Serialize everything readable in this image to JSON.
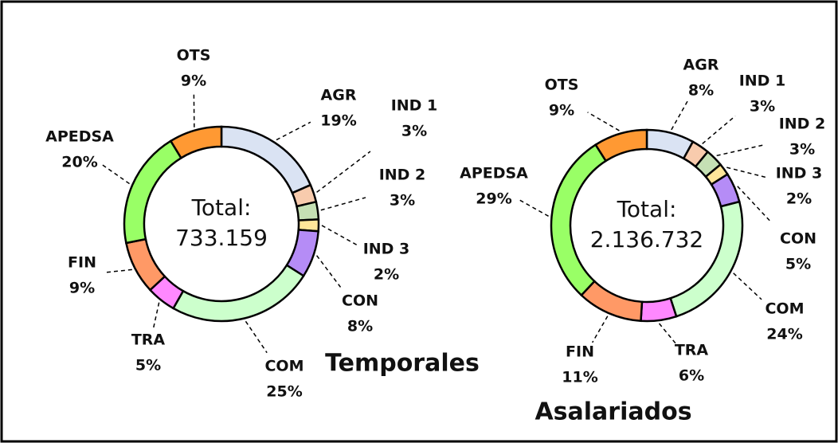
{
  "chart_data": [
    {
      "type": "donut",
      "title": "Temporales",
      "center_label": "Total:",
      "total": 733159,
      "total_label": "733.159",
      "categories": [
        "AGR",
        "IND 1",
        "IND 2",
        "IND 3",
        "CON",
        "COM",
        "TRA",
        "FIN",
        "APEDSA",
        "OTS"
      ],
      "values": [
        19,
        3,
        3,
        2,
        8,
        25,
        5,
        9,
        20,
        9
      ],
      "value_labels": [
        "19%",
        "3%",
        "3%",
        "2%",
        "8%",
        "25%",
        "5%",
        "9%",
        "20%",
        "9%"
      ],
      "colors": [
        "#dae3f3",
        "#f8cbad",
        "#c5e0b4",
        "#ffe699",
        "#b58cf6",
        "#ccffcc",
        "#ff88ff",
        "#ff9966",
        "#99ff66",
        "#ff9933"
      ]
    },
    {
      "type": "donut",
      "title": "Asalariados",
      "center_label": "Total:",
      "total": 2136732,
      "total_label": "2.136.732",
      "categories": [
        "AGR",
        "IND 1",
        "IND 2",
        "IND 3",
        "CON",
        "COM",
        "TRA",
        "FIN",
        "APEDSA",
        "OTS"
      ],
      "values": [
        8,
        3,
        3,
        2,
        5,
        24,
        6,
        11,
        29,
        9
      ],
      "value_labels": [
        "8%",
        "3%",
        "3%",
        "2%",
        "5%",
        "24%",
        "6%",
        "11%",
        "29%",
        "9%"
      ],
      "colors": [
        "#dae3f3",
        "#f8cbad",
        "#c5e0b4",
        "#ffe699",
        "#b58cf6",
        "#ccffcc",
        "#ff88ff",
        "#ff9966",
        "#99ff66",
        "#ff9933"
      ]
    }
  ]
}
